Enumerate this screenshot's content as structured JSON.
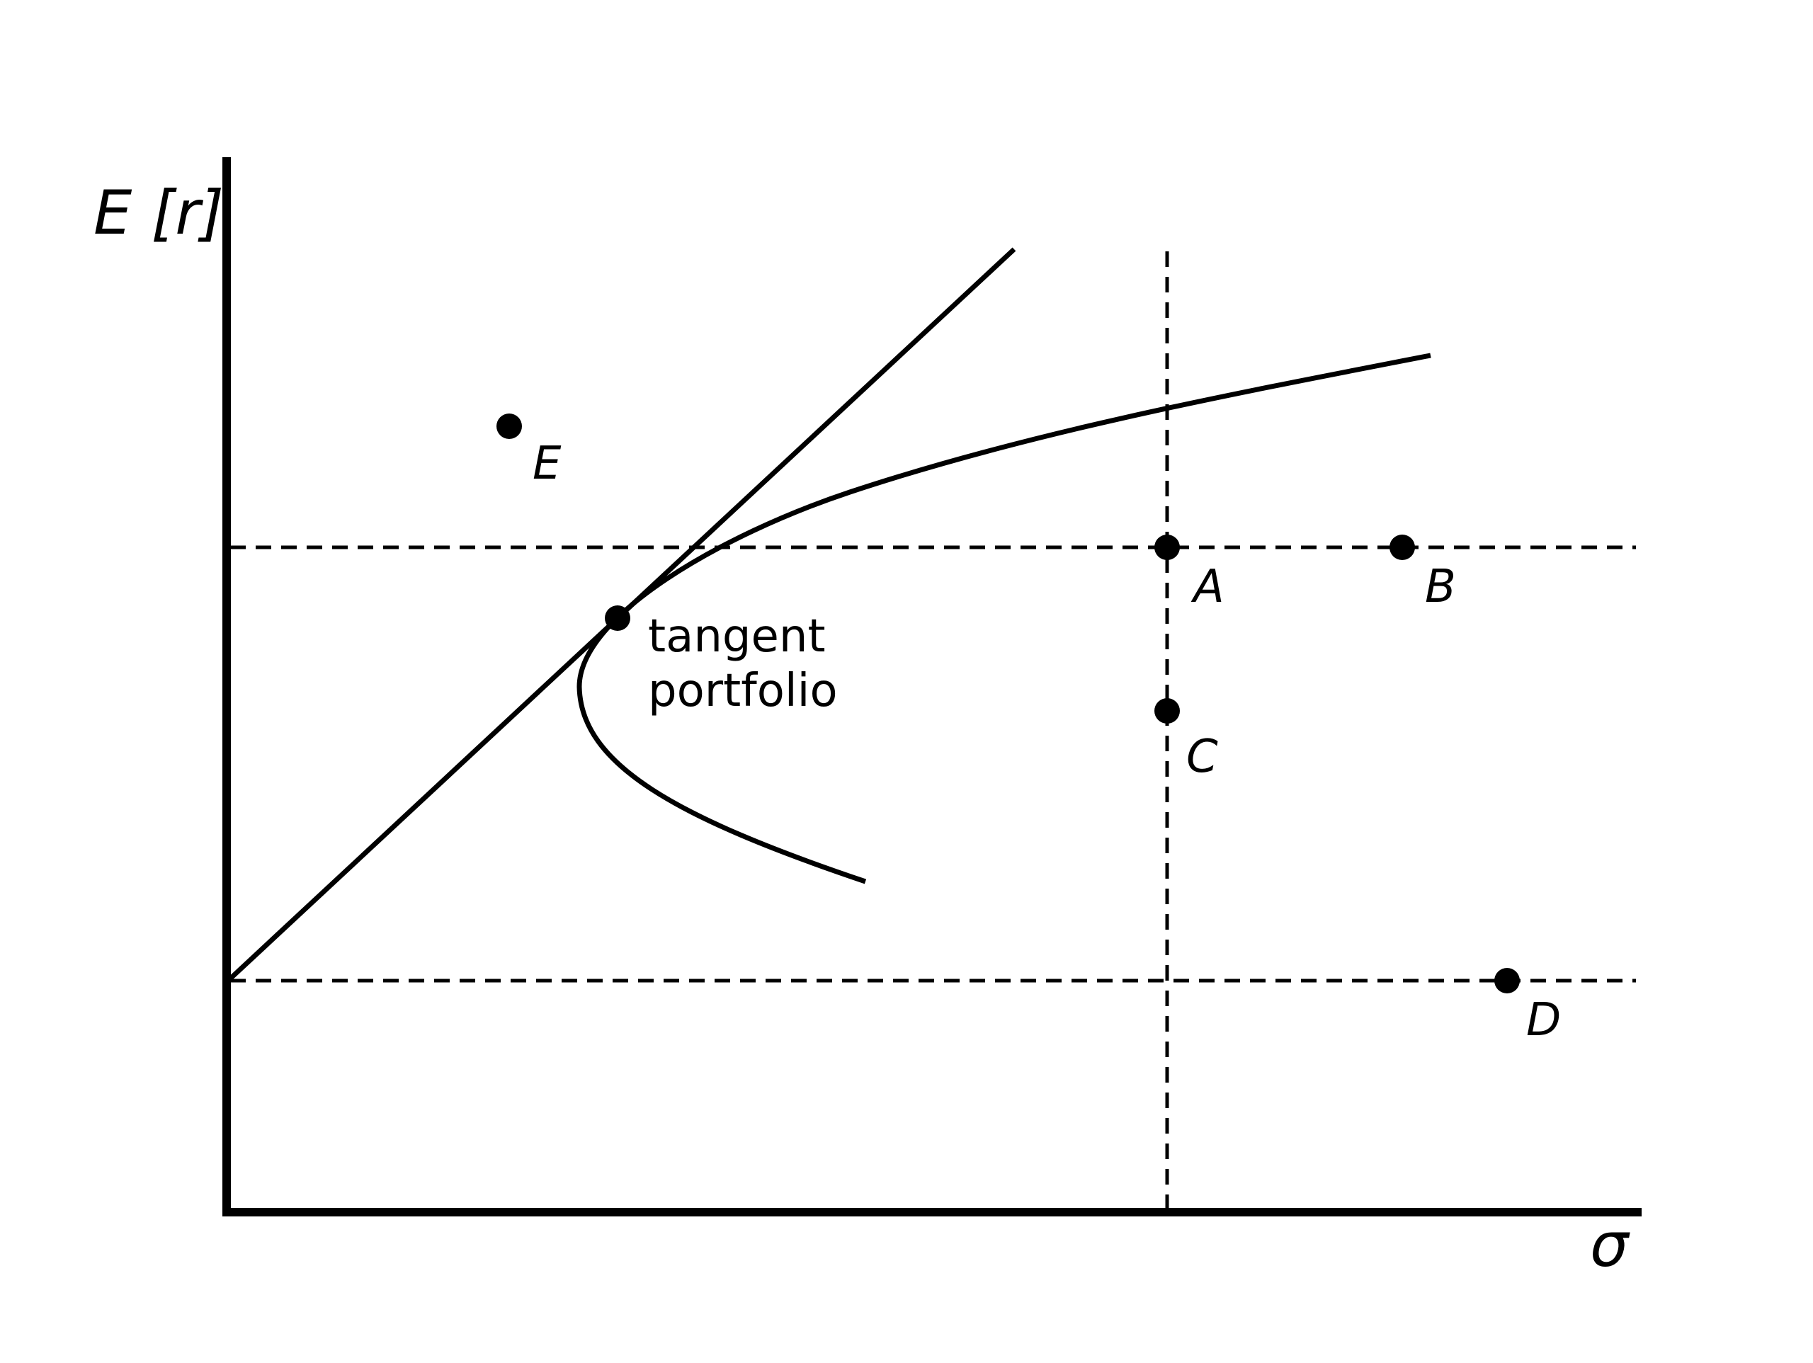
{
  "diagram": {
    "y_axis_label": "E [r]",
    "x_axis_label": "σ",
    "colors": {
      "ink": "#000000",
      "background": "#ffffff"
    },
    "points": [
      {
        "id": "E",
        "label": "E"
      },
      {
        "id": "A",
        "label": "A"
      },
      {
        "id": "B",
        "label": "B"
      },
      {
        "id": "C",
        "label": "C"
      },
      {
        "id": "D",
        "label": "D"
      },
      {
        "id": "tangent",
        "label": ""
      }
    ],
    "tangent_label_line1": "tangent",
    "tangent_label_line2": "portfolio"
  }
}
